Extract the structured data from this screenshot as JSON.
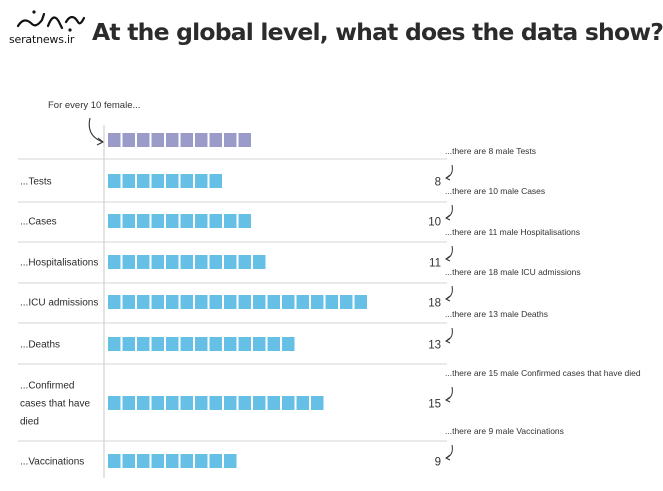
{
  "watermark": {
    "site": "seratnews.ir",
    "script_logo": "سراط"
  },
  "title": "At the global level, what does the data show?",
  "chart_data": {
    "type": "bar",
    "reference": {
      "label": "For every 10 female...",
      "value": 10
    },
    "categories": [
      "...Tests",
      "...Cases",
      "...Hospitalisations",
      "...ICU admissions",
      "...Deaths",
      "...Confirmed cases that have died",
      "...Vaccinations"
    ],
    "category_lines": [
      [
        "...Tests"
      ],
      [
        "...Cases"
      ],
      [
        "...Hospitalisations"
      ],
      [
        "...ICU admissions"
      ],
      [
        "...Deaths"
      ],
      [
        "...Confirmed",
        "cases that have",
        "died"
      ],
      [
        "...Vaccinations"
      ]
    ],
    "values": [
      8,
      10,
      11,
      18,
      13,
      15,
      9
    ],
    "value_labels": [
      "8",
      "10",
      "11",
      "18",
      "13",
      "15",
      "9"
    ],
    "annotations": [
      "...there are 8 male Tests",
      "...there are 10 male Cases",
      "...there are 11 male Hospitalisations",
      "...there are 18 male ICU admissions",
      "...there are 13 male Deaths",
      "...there are 15 male Confirmed cases that have died",
      "...there are 9 male Vaccinations"
    ],
    "colors": {
      "female": "#9b9bc9",
      "male": "#66c0e6",
      "divider": "#d4d4d4",
      "axis": "#c8c8c8",
      "arrow": "#333333"
    }
  }
}
